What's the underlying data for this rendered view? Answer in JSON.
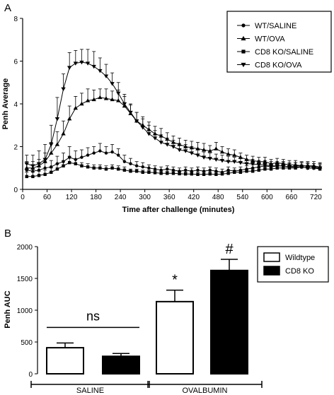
{
  "panel_labels": [
    "A",
    "B"
  ],
  "chart_data": [
    {
      "type": "line",
      "panel": "A",
      "xlabel": "Time after challenge (minutes)",
      "ylabel": "Penh Average",
      "xlim": [
        0,
        735
      ],
      "ylim": [
        0,
        8
      ],
      "x_ticks": [
        0,
        60,
        120,
        180,
        240,
        300,
        360,
        420,
        480,
        540,
        600,
        660,
        720
      ],
      "y_ticks": [
        0,
        2,
        4,
        6,
        8
      ],
      "legend_position": "top-right",
      "error_bars": "upper",
      "grid": false,
      "x": [
        10,
        25,
        40,
        55,
        70,
        85,
        100,
        115,
        130,
        145,
        160,
        175,
        190,
        205,
        220,
        235,
        250,
        265,
        280,
        295,
        310,
        325,
        340,
        355,
        370,
        385,
        400,
        415,
        430,
        445,
        460,
        475,
        490,
        505,
        520,
        535,
        550,
        565,
        580,
        595,
        610,
        625,
        640,
        655,
        670,
        685,
        700,
        715,
        730
      ],
      "series": [
        {
          "name": "WT/SALINE",
          "marker": "circle",
          "values": [
            0.9,
            0.85,
            0.9,
            1.0,
            1.05,
            1.2,
            1.3,
            1.5,
            1.4,
            1.5,
            1.6,
            1.7,
            1.8,
            1.7,
            1.75,
            1.6,
            1.3,
            1.2,
            1.1,
            1.05,
            1.0,
            0.95,
            0.9,
            0.95,
            0.9,
            0.85,
            0.9,
            0.85,
            0.9,
            0.85,
            0.9,
            0.85,
            0.8,
            0.9,
            0.85,
            0.9,
            0.95,
            1.0,
            1.05,
            1.1,
            1.05,
            1.1,
            1.1,
            1.05,
            1.1,
            1.1,
            1.1,
            1.05,
            1.0
          ],
          "errors": [
            0.3,
            0.3,
            0.3,
            0.3,
            0.3,
            0.35,
            0.4,
            0.5,
            0.4,
            0.35,
            0.35,
            0.3,
            0.35,
            0.3,
            0.35,
            0.3,
            0.3,
            0.25,
            0.2,
            0.2,
            0.15,
            0.15,
            0.15,
            0.15,
            0.15,
            0.15,
            0.15,
            0.15,
            0.15,
            0.15,
            0.15,
            0.15,
            0.15,
            0.15,
            0.15,
            0.15,
            0.15,
            0.15,
            0.15,
            0.15,
            0.15,
            0.15,
            0.15,
            0.15,
            0.15,
            0.15,
            0.15,
            0.15,
            0.15
          ]
        },
        {
          "name": "WT/OVA",
          "marker": "triangle-up",
          "values": [
            1.0,
            1.0,
            1.1,
            1.3,
            1.7,
            2.1,
            2.6,
            3.3,
            3.8,
            4.0,
            4.15,
            4.2,
            4.3,
            4.25,
            4.2,
            4.15,
            3.9,
            3.55,
            3.2,
            3.0,
            2.8,
            2.6,
            2.5,
            2.35,
            2.2,
            2.1,
            2.0,
            1.95,
            1.9,
            1.85,
            1.8,
            1.9,
            1.75,
            1.65,
            1.6,
            1.5,
            1.4,
            1.35,
            1.3,
            1.3,
            1.2,
            1.25,
            1.2,
            1.15,
            1.15,
            1.1,
            1.1,
            1.1,
            1.05
          ],
          "errors": [
            0.3,
            0.3,
            0.3,
            0.4,
            0.5,
            0.6,
            0.6,
            0.6,
            0.55,
            0.5,
            0.55,
            0.45,
            0.4,
            0.45,
            0.4,
            0.5,
            0.45,
            0.4,
            0.4,
            0.4,
            0.35,
            0.35,
            0.35,
            0.3,
            0.3,
            0.3,
            0.3,
            0.3,
            0.3,
            0.3,
            0.25,
            0.3,
            0.25,
            0.25,
            0.25,
            0.2,
            0.2,
            0.2,
            0.2,
            0.2,
            0.2,
            0.2,
            0.2,
            0.2,
            0.2,
            0.2,
            0.2,
            0.2,
            0.2
          ]
        },
        {
          "name": "CD8 KO/SALINE",
          "marker": "square",
          "values": [
            0.6,
            0.6,
            0.65,
            0.7,
            0.8,
            0.95,
            1.1,
            1.25,
            1.2,
            1.1,
            1.05,
            1.0,
            1.0,
            0.95,
            1.0,
            0.95,
            0.9,
            0.85,
            0.85,
            0.8,
            0.8,
            0.78,
            0.75,
            0.75,
            0.75,
            0.73,
            0.72,
            0.72,
            0.7,
            0.7,
            0.72,
            0.7,
            0.72,
            0.75,
            0.8,
            0.8,
            0.85,
            0.85,
            0.9,
            0.95,
            0.95,
            1.0,
            1.0,
            1.0,
            1.0,
            1.05,
            1.0,
            1.0,
            0.95
          ],
          "errors": [
            0.2,
            0.2,
            0.2,
            0.2,
            0.2,
            0.25,
            0.25,
            0.3,
            0.2,
            0.15,
            0.15,
            0.15,
            0.15,
            0.15,
            0.15,
            0.15,
            0.15,
            0.1,
            0.1,
            0.1,
            0.1,
            0.1,
            0.1,
            0.1,
            0.1,
            0.1,
            0.1,
            0.1,
            0.1,
            0.1,
            0.1,
            0.1,
            0.1,
            0.1,
            0.1,
            0.1,
            0.1,
            0.1,
            0.1,
            0.1,
            0.1,
            0.1,
            0.1,
            0.1,
            0.1,
            0.1,
            0.1,
            0.1,
            0.1
          ]
        },
        {
          "name": "CD8 KO/OVA",
          "marker": "triangle-down",
          "values": [
            1.2,
            1.1,
            1.2,
            1.4,
            2.1,
            3.3,
            4.7,
            5.7,
            5.9,
            5.95,
            5.9,
            5.75,
            5.55,
            5.3,
            4.95,
            4.5,
            4.0,
            3.6,
            3.2,
            2.9,
            2.6,
            2.4,
            2.2,
            2.1,
            2.0,
            1.85,
            1.8,
            1.7,
            1.6,
            1.5,
            1.45,
            1.4,
            1.35,
            1.3,
            1.3,
            1.25,
            1.2,
            1.2,
            1.15,
            1.15,
            1.1,
            1.1,
            1.1,
            1.05,
            1.05,
            1.05,
            1.0,
            1.0,
            1.0
          ],
          "errors": [
            0.4,
            0.5,
            0.6,
            0.7,
            0.9,
            1.0,
            0.7,
            0.7,
            0.6,
            0.6,
            0.65,
            0.7,
            0.6,
            0.55,
            0.5,
            0.5,
            0.45,
            0.4,
            0.4,
            0.4,
            0.4,
            0.35,
            0.35,
            0.3,
            0.3,
            0.3,
            0.3,
            0.3,
            0.3,
            0.25,
            0.25,
            0.25,
            0.25,
            0.25,
            0.2,
            0.2,
            0.2,
            0.2,
            0.2,
            0.2,
            0.2,
            0.2,
            0.2,
            0.2,
            0.2,
            0.2,
            0.2,
            0.2,
            0.2
          ]
        }
      ]
    },
    {
      "type": "bar",
      "panel": "B",
      "ylabel": "Penh AUC",
      "ylim": [
        0,
        2000
      ],
      "y_ticks": [
        0,
        500,
        1000,
        1500,
        2000
      ],
      "categories": [
        "SALINE",
        "OVALBUMIN"
      ],
      "legend_position": "top-right",
      "grid": false,
      "series": [
        {
          "name": "Wildtype",
          "fill": "white",
          "values": [
            410,
            1135
          ],
          "errors": [
            75,
            180
          ]
        },
        {
          "name": "CD8 KO",
          "fill": "black",
          "values": [
            275,
            1625
          ],
          "errors": [
            45,
            175
          ]
        }
      ],
      "annotations": [
        {
          "text": "ns",
          "category": "SALINE",
          "kind": "comparison-line"
        },
        {
          "text": "*",
          "category": "OVALBUMIN",
          "series": "Wildtype"
        },
        {
          "text": "#",
          "category": "OVALBUMIN",
          "series": "CD8 KO"
        }
      ]
    }
  ]
}
